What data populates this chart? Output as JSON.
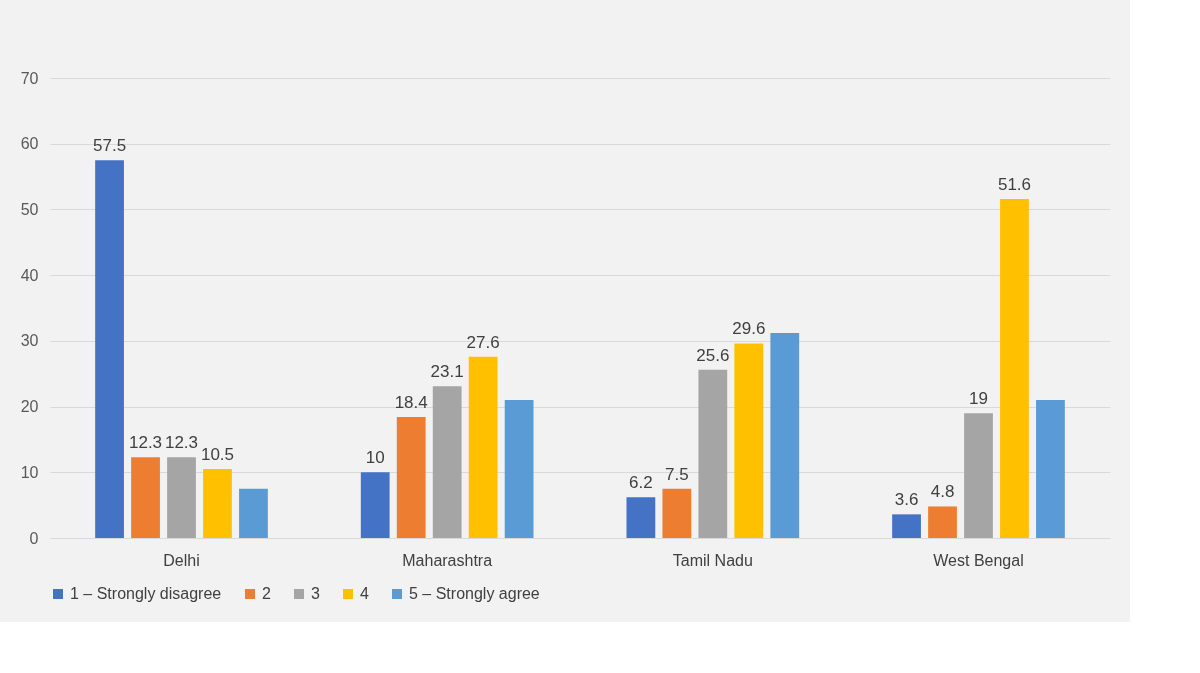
{
  "chart_data": {
    "type": "bar",
    "categories": [
      "Delhi",
      "Maharashtra",
      "Tamil Nadu",
      "West Bengal"
    ],
    "series": [
      {
        "name": "1 – Strongly disagree",
        "color": "#4472c4",
        "values": [
          57.5,
          10,
          6.2,
          3.6
        ],
        "value_labels": [
          "57.5",
          "10",
          "6.2",
          "3.6"
        ]
      },
      {
        "name": "2",
        "color": "#ed7d31",
        "values": [
          12.3,
          18.4,
          7.5,
          4.8
        ],
        "value_labels": [
          "12.3",
          "18.4",
          "7.5",
          "4.8"
        ]
      },
      {
        "name": "3",
        "color": "#a5a5a5",
        "values": [
          12.3,
          23.1,
          25.6,
          19
        ],
        "value_labels": [
          "12.3",
          "23.1",
          "25.6",
          "19"
        ]
      },
      {
        "name": "4",
        "color": "#ffc000",
        "values": [
          10.5,
          27.6,
          29.6,
          51.6
        ],
        "value_labels": [
          "10.5",
          "27.6",
          "29.6",
          "51.6"
        ]
      },
      {
        "name": "5 – Strongly agree",
        "color": "#5b9bd5",
        "values": [
          7.5,
          21,
          31.2,
          21
        ],
        "value_labels": [
          null,
          null,
          null,
          null
        ]
      }
    ],
    "ylim": [
      0,
      70
    ],
    "yticks": [
      0,
      10,
      20,
      30,
      40,
      50,
      60,
      70
    ],
    "grid": "y",
    "legend": "bottom"
  }
}
